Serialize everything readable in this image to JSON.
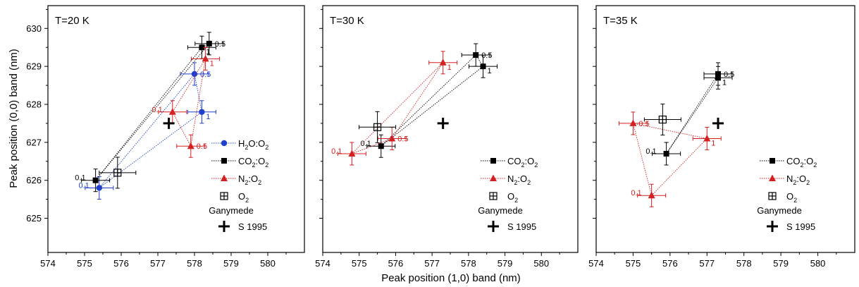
{
  "figure": {
    "xlabel": "Peak position (1,0) band (nm)",
    "ylabel": "Peak position (0,0) band (nm)"
  },
  "chart_data": [
    {
      "type": "scatter",
      "title": "T=20 K",
      "xlim": [
        574,
        581
      ],
      "ylim": [
        624.1,
        630.6
      ],
      "xticks": [
        574,
        575,
        576,
        577,
        578,
        579,
        580
      ],
      "yticks": [
        625,
        626,
        627,
        628,
        629,
        630
      ],
      "series": [
        {
          "name": "H2O:O2",
          "marker": "circle",
          "color": "#1f3fcc",
          "line": true,
          "points": [
            {
              "x": 575.4,
              "y": 625.8,
              "label": "0.1"
            },
            {
              "x": 578.0,
              "y": 628.8,
              "label": "0.5"
            },
            {
              "x": 578.2,
              "y": 627.8,
              "label": "1"
            }
          ]
        },
        {
          "name": "CO2:O2",
          "marker": "square",
          "color": "#000000",
          "line": true,
          "points": [
            {
              "x": 575.3,
              "y": 626.0,
              "label": "0.1"
            },
            {
              "x": 578.4,
              "y": 629.6,
              "label": "0.5"
            },
            {
              "x": 578.2,
              "y": 629.5,
              "label": "1"
            }
          ]
        },
        {
          "name": "N2:O2",
          "marker": "triangle",
          "color": "#d42020",
          "line": true,
          "points": [
            {
              "x": 577.4,
              "y": 627.8,
              "label": "0.1"
            },
            {
              "x": 577.9,
              "y": 626.9,
              "label": "0.5"
            },
            {
              "x": 578.3,
              "y": 629.2,
              "label": "1"
            }
          ]
        },
        {
          "name": "O2",
          "marker": "squareplus",
          "color": "#000000",
          "line": false,
          "points": [
            {
              "x": 575.9,
              "y": 626.2,
              "label": ""
            }
          ]
        },
        {
          "name": "S 1995",
          "marker": "plus",
          "color": "#000000",
          "line": false,
          "points": [
            {
              "x": 577.3,
              "y": 627.5,
              "label": ""
            }
          ]
        }
      ],
      "legend": {
        "position": "right",
        "entries": [
          "H2O:O2",
          "CO2:O2",
          "N2:O2",
          "O2"
        ],
        "group_label": "Ganymede",
        "group_entries": [
          "S 1995"
        ]
      }
    },
    {
      "type": "scatter",
      "title": "T=30 K",
      "xlim": [
        574,
        581
      ],
      "ylim": [
        624.1,
        630.6
      ],
      "xticks": [
        574,
        575,
        576,
        577,
        578,
        579,
        580
      ],
      "yticks": [
        625,
        626,
        627,
        628,
        629,
        630
      ],
      "series": [
        {
          "name": "CO2:O2",
          "marker": "square",
          "color": "#000000",
          "line": true,
          "points": [
            {
              "x": 575.6,
              "y": 626.9,
              "label": "0.1"
            },
            {
              "x": 578.2,
              "y": 629.3,
              "label": "0.5"
            },
            {
              "x": 578.4,
              "y": 629.0,
              "label": "1"
            }
          ]
        },
        {
          "name": "N2:O2",
          "marker": "triangle",
          "color": "#d42020",
          "line": true,
          "points": [
            {
              "x": 574.8,
              "y": 626.7,
              "label": "0.1"
            },
            {
              "x": 575.9,
              "y": 627.1,
              "label": "0.5"
            },
            {
              "x": 577.3,
              "y": 629.1,
              "label": "1"
            }
          ]
        },
        {
          "name": "O2",
          "marker": "squareplus",
          "color": "#000000",
          "line": false,
          "points": [
            {
              "x": 575.5,
              "y": 627.4,
              "label": ""
            }
          ]
        },
        {
          "name": "S 1995",
          "marker": "plus",
          "color": "#000000",
          "line": false,
          "points": [
            {
              "x": 577.3,
              "y": 627.5,
              "label": ""
            }
          ]
        }
      ],
      "legend": {
        "position": "bottom-right",
        "entries": [
          "CO2:O2",
          "N2:O2",
          "O2"
        ],
        "group_label": "Ganymede",
        "group_entries": [
          "S 1995"
        ]
      }
    },
    {
      "type": "scatter",
      "title": "T=35 K",
      "xlim": [
        574,
        581
      ],
      "ylim": [
        624.1,
        630.6
      ],
      "xticks": [
        574,
        575,
        576,
        577,
        578,
        579,
        580
      ],
      "yticks": [
        625,
        626,
        627,
        628,
        629,
        630
      ],
      "series": [
        {
          "name": "CO2:O2",
          "marker": "square",
          "color": "#000000",
          "line": true,
          "points": [
            {
              "x": 575.9,
              "y": 626.7,
              "label": "0.1"
            },
            {
              "x": 577.3,
              "y": 628.8,
              "label": "0.5"
            },
            {
              "x": 577.3,
              "y": 628.7,
              "label": "1"
            }
          ]
        },
        {
          "name": "N2:O2",
          "marker": "triangle",
          "color": "#d42020",
          "line": true,
          "points": [
            {
              "x": 575.5,
              "y": 625.6,
              "label": "0.1"
            },
            {
              "x": 575.0,
              "y": 627.5,
              "label": "0.5"
            },
            {
              "x": 577.0,
              "y": 627.1,
              "label": "1"
            }
          ]
        },
        {
          "name": "O2",
          "marker": "squareplus",
          "color": "#000000",
          "line": false,
          "points": [
            {
              "x": 575.8,
              "y": 627.6,
              "label": ""
            }
          ]
        },
        {
          "name": "S 1995",
          "marker": "plus",
          "color": "#000000",
          "line": false,
          "points": [
            {
              "x": 577.3,
              "y": 627.5,
              "label": ""
            }
          ]
        }
      ],
      "legend": {
        "position": "bottom-right",
        "entries": [
          "CO2:O2",
          "N2:O2",
          "O2"
        ],
        "group_label": "Ganymede",
        "group_entries": [
          "S 1995"
        ]
      }
    }
  ]
}
